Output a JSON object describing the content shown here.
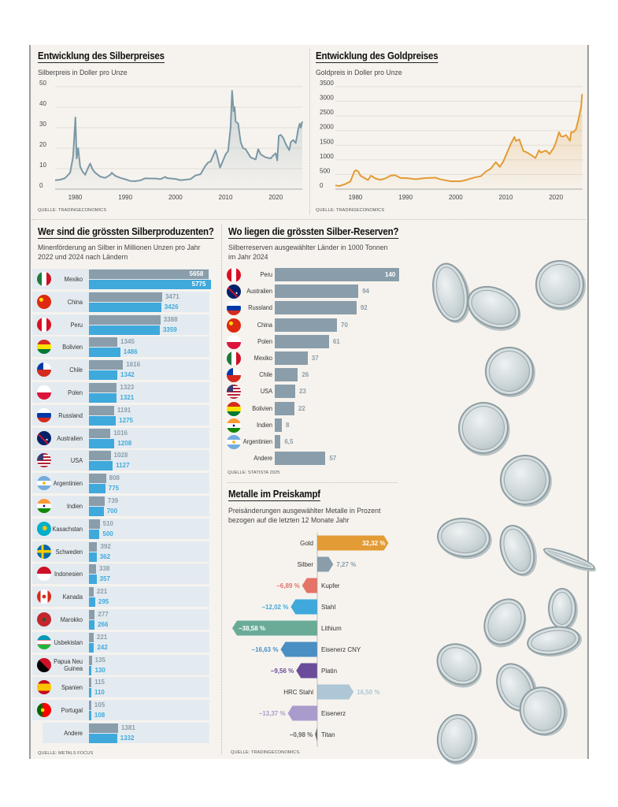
{
  "silver_chart": {
    "title": "Entwicklung des Silberpreises",
    "subtitle": "Silberpreis in Doller pro Unze",
    "source": "QUELLE: TRADINGECONOMICS",
    "chart_data": {
      "type": "area",
      "title": "Entwicklung des Silberpreises",
      "ylabel": "Silberpreis in Doller pro Unze",
      "xlim": [
        1976,
        2025.3
      ],
      "ylim": [
        0,
        50
      ],
      "yticks": [
        0,
        10,
        20,
        30,
        40,
        50
      ],
      "xticks": [
        1980,
        1990,
        2000,
        2010,
        2020
      ],
      "grid": true,
      "color": "#7a98a6",
      "x": [
        1976,
        1977,
        1978,
        1979,
        1979.6,
        1980.05,
        1980.3,
        1980.6,
        1981,
        1981.5,
        1982,
        1982.5,
        1983,
        1983.5,
        1984,
        1985,
        1986,
        1987,
        1987.3,
        1988,
        1989,
        1990,
        1991,
        1992,
        1993,
        1994,
        1995,
        1996,
        1997,
        1998,
        1998.2,
        1999,
        2000,
        2001,
        2002,
        2003,
        2004,
        2005,
        2006,
        2006.5,
        2007,
        2008,
        2008.3,
        2008.9,
        2009.5,
        2010,
        2010.5,
        2011,
        2011.3,
        2011.6,
        2011.8,
        2012,
        2012.5,
        2013,
        2013.5,
        2014,
        2015,
        2016,
        2016.5,
        2017,
        2018,
        2019,
        2019.5,
        2020,
        2020.3,
        2020.6,
        2021,
        2021.5,
        2022,
        2022.7,
        2023,
        2023.5,
        2024,
        2024.5,
        2024.8,
        2025,
        2025.3
      ],
      "y": [
        4.3,
        4.6,
        5.4,
        8,
        16,
        35,
        15,
        20,
        11,
        8.5,
        7,
        10,
        12.5,
        9.5,
        8,
        6.1,
        5.5,
        7,
        8,
        6.5,
        5.5,
        4.8,
        4,
        3.9,
        4.3,
        5.3,
        5.2,
        5.2,
        4.9,
        6,
        5.5,
        5.2,
        5,
        4.4,
        4.6,
        4.9,
        6.7,
        7.3,
        11.5,
        13,
        13.4,
        19,
        16.5,
        10.5,
        14,
        17,
        18.5,
        30,
        48,
        38,
        40,
        33,
        32,
        23,
        20,
        19.5,
        15.5,
        14.5,
        19.5,
        17,
        15.5,
        15,
        16.5,
        17.5,
        14,
        26,
        26.5,
        25,
        22,
        19,
        23,
        24,
        22.5,
        29.5,
        32,
        30,
        33
      ]
    }
  },
  "gold_chart": {
    "title": "Entwicklung des Goldpreises",
    "subtitle": "Goldpreis in Doller pro Unze",
    "source": "QUELLE: TRADINGECONOMICS",
    "chart_data": {
      "type": "area",
      "title": "Entwicklung des Goldpreises",
      "ylabel": "Goldpreis in Doller pro Unze",
      "xlim": [
        1976,
        2025.3
      ],
      "ylim": [
        0,
        3500
      ],
      "yticks": [
        0,
        500,
        1000,
        1500,
        2000,
        2500,
        3000,
        3500
      ],
      "xticks": [
        1980,
        1990,
        2000,
        2010,
        2020
      ],
      "grid": true,
      "color": "#e39b35",
      "x": [
        1976,
        1976.8,
        1978,
        1979,
        1979.8,
        1980.1,
        1980.6,
        1981,
        1982.5,
        1983.1,
        1984,
        1985,
        1986,
        1987,
        1987.9,
        1989,
        1990,
        1992,
        1993,
        1994,
        1996,
        1997,
        1999,
        2001,
        2002,
        2003,
        2004,
        2005,
        2006,
        2007,
        2008,
        2008.8,
        2009.5,
        2010,
        2011,
        2011.7,
        2012,
        2012.7,
        2013.5,
        2014,
        2015,
        2015.9,
        2016.6,
        2017,
        2018,
        2018.7,
        2019.5,
        2020,
        2020.6,
        2021,
        2021.5,
        2022,
        2022.8,
        2023,
        2023.5,
        2024,
        2024.5,
        2025,
        2025.2
      ],
      "y": [
        130,
        105,
        175,
        260,
        610,
        650,
        600,
        460,
        310,
        460,
        360,
        320,
        370,
        460,
        480,
        380,
        380,
        340,
        360,
        380,
        390,
        330,
        270,
        270,
        310,
        360,
        410,
        440,
        600,
        700,
        920,
        760,
        950,
        1150,
        1550,
        1780,
        1650,
        1700,
        1300,
        1270,
        1170,
        1060,
        1330,
        1250,
        1320,
        1200,
        1400,
        1600,
        1950,
        1800,
        1800,
        1850,
        1650,
        1950,
        1950,
        2050,
        2400,
        2800,
        3250
      ]
    }
  },
  "producers": {
    "title": "Wer sind die grössten Silberproduzenten?",
    "subtitle_line1": "Minenförderung an Silber in Millionen Unzen pro Jahr",
    "subtitle_line2": "2022 und 2024 nach Ländern",
    "source": "QUELLE: METALS FOCUS",
    "colors": {
      "2022": "#8a9daa",
      "2024": "#3fa9dc"
    },
    "chart_data": {
      "type": "bar",
      "orientation": "horizontal",
      "title": "Wer sind die grössten Silberproduzenten?",
      "categories": [
        "Mexiko",
        "China",
        "Peru",
        "Bolivien",
        "Chile",
        "Polen",
        "Russland",
        "Australien",
        "USA",
        "Argentinien",
        "Indien",
        "Kasachstan",
        "Schweden",
        "Indonesien",
        "Kanada",
        "Marokko",
        "Usbekistan",
        "Papua Neu Guinea",
        "Spanien",
        "Portugal",
        "Andere"
      ],
      "flags": [
        "mexico-flag",
        "china-flag",
        "peru-flag",
        "bolivia-flag",
        "chile-flag",
        "poland-flag",
        "russia-flag",
        "australia-flag",
        "usa-flag",
        "argentina-flag",
        "india-flag",
        "kazakhstan-flag",
        "sweden-flag",
        "indonesia-flag",
        "canada-flag",
        "morocco-flag",
        "uzbekistan-flag",
        "papua-new-guinea-flag",
        "spain-flag",
        "portugal-flag",
        ""
      ],
      "series": [
        {
          "name": "2022",
          "values": [
            5658,
            3471,
            3388,
            1345,
            1616,
            1323,
            1191,
            1016,
            1028,
            808,
            739,
            510,
            392,
            338,
            221,
            277,
            221,
            135,
            115,
            105,
            1381
          ]
        },
        {
          "name": "2024",
          "values": [
            5775,
            3426,
            3359,
            1486,
            1342,
            1321,
            1275,
            1208,
            1127,
            775,
            700,
            500,
            362,
            357,
            295,
            266,
            242,
            130,
            110,
            108,
            1332
          ]
        }
      ],
      "xlim": [
        0,
        5900
      ]
    }
  },
  "reserves": {
    "title": "Wo liegen die grössten Silber-Reserven?",
    "subtitle_line1": "Silberreserven ausgewählter Länder in 1000 Tonnen",
    "subtitle_line2": "im Jahr 2024",
    "source": "QUELLE: STATISTA 2025",
    "color": "#8a9daa",
    "chart_data": {
      "type": "bar",
      "orientation": "horizontal",
      "title": "Wo liegen die grössten Silber-Reserven?",
      "categories": [
        "Peru",
        "Australien",
        "Russland",
        "China",
        "Polen",
        "Mexiko",
        "Chile",
        "USA",
        "Bolivien",
        "Indien",
        "Argentinien",
        "Andere"
      ],
      "flags": [
        "peru-flag",
        "australia-flag",
        "russia-flag",
        "china-flag",
        "poland-flag",
        "mexico-flag",
        "chile-flag",
        "usa-flag",
        "bolivia-flag",
        "india-flag",
        "argentina-flag",
        ""
      ],
      "values": [
        140,
        94,
        92,
        70,
        61,
        37,
        26,
        23,
        22,
        8,
        6.5,
        57
      ],
      "labels": [
        "140",
        "94",
        "92",
        "70",
        "61",
        "37",
        "26",
        "23",
        "22",
        "8",
        "6,5",
        "57"
      ],
      "xlim": [
        0,
        140
      ]
    }
  },
  "metals": {
    "title": "Metalle im Preiskampf",
    "subtitle_line1": "Preisänderungen ausgewählter Metalle in Prozent",
    "subtitle_line2": "bezogen auf die letzten 12 Monate Jahr",
    "source": "QUELLE: TRADINGECONOMICS.",
    "chart_data": {
      "type": "bar",
      "orientation": "horizontal-diverging",
      "title": "Metalle im Preiskampf",
      "categories": [
        "Gold",
        "Silber",
        "Kupfer",
        "Stahl",
        "Lithium",
        "Eisenerz CNY",
        "Platin",
        "HRC Stahl",
        "Eisenerz",
        "Titan"
      ],
      "values": [
        32.32,
        7.27,
        -6.89,
        -12.02,
        -38.58,
        -16.63,
        -9.56,
        16.5,
        -13.37,
        -0.98
      ],
      "labels": [
        "32,32 %",
        "7,27 %",
        "−6,89 %",
        "−12,02 %",
        "−38,58 %",
        "−16,63 %",
        "−9,56 %",
        "16,50 %",
        "−13,37 %",
        "−0,98 %"
      ],
      "colors": [
        "#e39b35",
        "#8a9daa",
        "#e57368",
        "#3fa9dc",
        "#6aab97",
        "#4a8fc4",
        "#6b4c9a",
        "#adc7d6",
        "#ab9bcd",
        "#666666"
      ],
      "xlim": [
        -38.58,
        32.32
      ]
    }
  }
}
